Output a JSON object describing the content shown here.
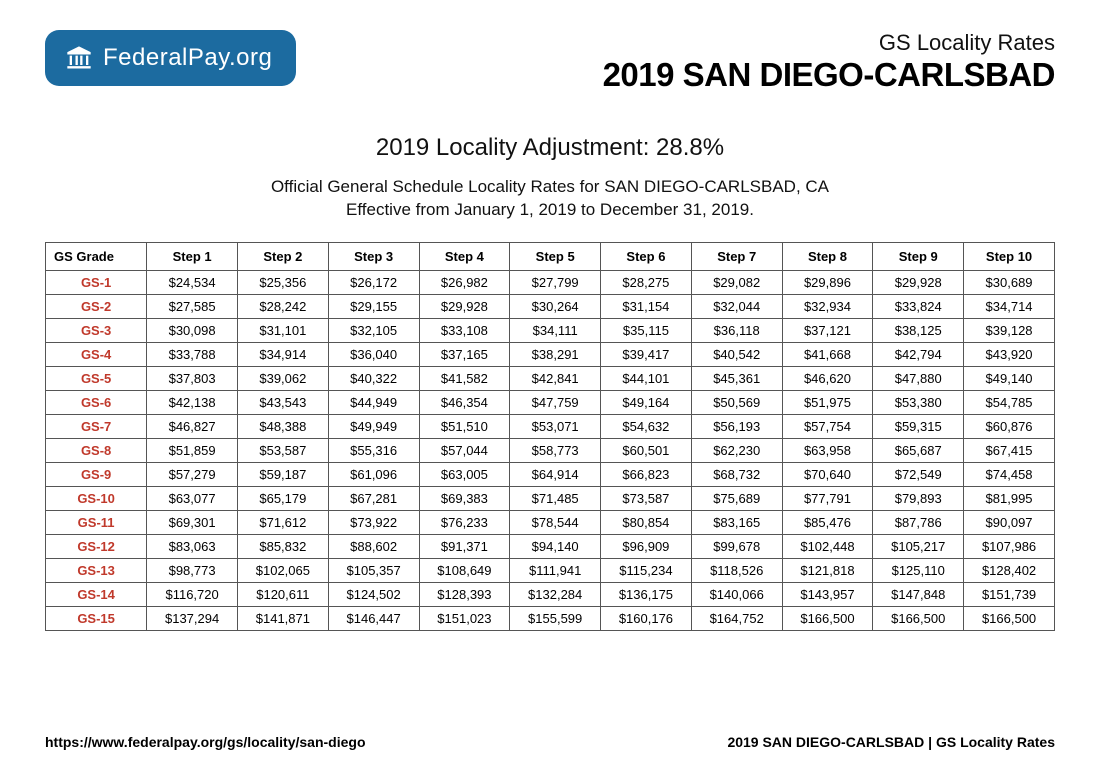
{
  "logo": {
    "text_bold": "Federal",
    "text_light": "Pay.org",
    "background_color": "#1c6ba0",
    "text_color": "#ffffff"
  },
  "header": {
    "subtitle": "GS Locality Rates",
    "title": "2019 SAN DIEGO-CARLSBAD"
  },
  "mid": {
    "heading": "2019 Locality Adjustment: 28.8%",
    "line1": "Official General Schedule Locality Rates for SAN DIEGO-CARLSBAD, CA",
    "line2": "Effective from January 1, 2019 to December 31, 2019."
  },
  "table": {
    "grade_color": "#c0392b",
    "border_color": "#555555",
    "columns": [
      "GS Grade",
      "Step 1",
      "Step 2",
      "Step 3",
      "Step 4",
      "Step 5",
      "Step 6",
      "Step 7",
      "Step 8",
      "Step 9",
      "Step 10"
    ],
    "rows": [
      {
        "grade": "GS-1",
        "cells": [
          "$24,534",
          "$25,356",
          "$26,172",
          "$26,982",
          "$27,799",
          "$28,275",
          "$29,082",
          "$29,896",
          "$29,928",
          "$30,689"
        ]
      },
      {
        "grade": "GS-2",
        "cells": [
          "$27,585",
          "$28,242",
          "$29,155",
          "$29,928",
          "$30,264",
          "$31,154",
          "$32,044",
          "$32,934",
          "$33,824",
          "$34,714"
        ]
      },
      {
        "grade": "GS-3",
        "cells": [
          "$30,098",
          "$31,101",
          "$32,105",
          "$33,108",
          "$34,111",
          "$35,115",
          "$36,118",
          "$37,121",
          "$38,125",
          "$39,128"
        ]
      },
      {
        "grade": "GS-4",
        "cells": [
          "$33,788",
          "$34,914",
          "$36,040",
          "$37,165",
          "$38,291",
          "$39,417",
          "$40,542",
          "$41,668",
          "$42,794",
          "$43,920"
        ]
      },
      {
        "grade": "GS-5",
        "cells": [
          "$37,803",
          "$39,062",
          "$40,322",
          "$41,582",
          "$42,841",
          "$44,101",
          "$45,361",
          "$46,620",
          "$47,880",
          "$49,140"
        ]
      },
      {
        "grade": "GS-6",
        "cells": [
          "$42,138",
          "$43,543",
          "$44,949",
          "$46,354",
          "$47,759",
          "$49,164",
          "$50,569",
          "$51,975",
          "$53,380",
          "$54,785"
        ]
      },
      {
        "grade": "GS-7",
        "cells": [
          "$46,827",
          "$48,388",
          "$49,949",
          "$51,510",
          "$53,071",
          "$54,632",
          "$56,193",
          "$57,754",
          "$59,315",
          "$60,876"
        ]
      },
      {
        "grade": "GS-8",
        "cells": [
          "$51,859",
          "$53,587",
          "$55,316",
          "$57,044",
          "$58,773",
          "$60,501",
          "$62,230",
          "$63,958",
          "$65,687",
          "$67,415"
        ]
      },
      {
        "grade": "GS-9",
        "cells": [
          "$57,279",
          "$59,187",
          "$61,096",
          "$63,005",
          "$64,914",
          "$66,823",
          "$68,732",
          "$70,640",
          "$72,549",
          "$74,458"
        ]
      },
      {
        "grade": "GS-10",
        "cells": [
          "$63,077",
          "$65,179",
          "$67,281",
          "$69,383",
          "$71,485",
          "$73,587",
          "$75,689",
          "$77,791",
          "$79,893",
          "$81,995"
        ]
      },
      {
        "grade": "GS-11",
        "cells": [
          "$69,301",
          "$71,612",
          "$73,922",
          "$76,233",
          "$78,544",
          "$80,854",
          "$83,165",
          "$85,476",
          "$87,786",
          "$90,097"
        ]
      },
      {
        "grade": "GS-12",
        "cells": [
          "$83,063",
          "$85,832",
          "$88,602",
          "$91,371",
          "$94,140",
          "$96,909",
          "$99,678",
          "$102,448",
          "$105,217",
          "$107,986"
        ]
      },
      {
        "grade": "GS-13",
        "cells": [
          "$98,773",
          "$102,065",
          "$105,357",
          "$108,649",
          "$111,941",
          "$115,234",
          "$118,526",
          "$121,818",
          "$125,110",
          "$128,402"
        ]
      },
      {
        "grade": "GS-14",
        "cells": [
          "$116,720",
          "$120,611",
          "$124,502",
          "$128,393",
          "$132,284",
          "$136,175",
          "$140,066",
          "$143,957",
          "$147,848",
          "$151,739"
        ]
      },
      {
        "grade": "GS-15",
        "cells": [
          "$137,294",
          "$141,871",
          "$146,447",
          "$151,023",
          "$155,599",
          "$160,176",
          "$164,752",
          "$166,500",
          "$166,500",
          "$166,500"
        ]
      }
    ]
  },
  "footer": {
    "left": "https://www.federalpay.org/gs/locality/san-diego",
    "right": "2019 SAN DIEGO-CARLSBAD | GS Locality Rates"
  }
}
